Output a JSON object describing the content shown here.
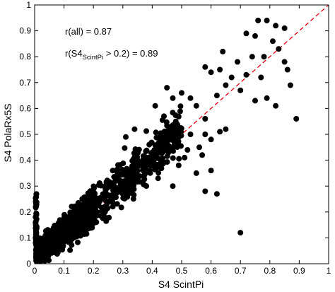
{
  "chart_data": {
    "type": "scatter",
    "xlabel": "S4 ScintPi",
    "ylabel": "S4 PolaRx5S",
    "xlim": [
      0,
      1
    ],
    "ylim": [
      0,
      1
    ],
    "xticks": [
      "0",
      "0.1",
      "0.2",
      "0.3",
      "0.4",
      "0.5",
      "0.6",
      "0.7",
      "0.8",
      "0.9",
      "1"
    ],
    "yticks": [
      "0",
      "0.1",
      "0.2",
      "0.3",
      "0.4",
      "0.5",
      "0.6",
      "0.7",
      "0.8",
      "0.9",
      "1"
    ],
    "grid": false,
    "annotations": {
      "r_all": "r(all) = 0.87",
      "r_sub_prefix": "r(S4",
      "r_sub_subscript": "ScintPi",
      "r_sub_suffix": " > 0.2) = 0.89"
    },
    "reference_line": {
      "label": "",
      "x": [
        0,
        1
      ],
      "y": [
        0,
        1
      ],
      "style": "dashed",
      "color": "#e0000f"
    },
    "marker_color": "#000000",
    "series": [
      {
        "points": [
          [
            0.76,
            0.94
          ],
          [
            0.79,
            0.94
          ],
          [
            0.82,
            0.92
          ],
          [
            0.85,
            0.91
          ],
          [
            0.75,
            0.88
          ],
          [
            0.81,
            0.86
          ],
          [
            0.83,
            0.83
          ],
          [
            0.72,
            0.89
          ],
          [
            0.78,
            0.8
          ],
          [
            0.64,
            0.82
          ],
          [
            0.74,
            0.8
          ],
          [
            0.85,
            0.78
          ],
          [
            0.69,
            0.78
          ],
          [
            0.72,
            0.73
          ],
          [
            0.77,
            0.72
          ],
          [
            0.67,
            0.72
          ],
          [
            0.63,
            0.75
          ],
          [
            0.65,
            0.69
          ],
          [
            0.6,
            0.74
          ],
          [
            0.58,
            0.76
          ],
          [
            0.7,
            0.67
          ],
          [
            0.79,
            0.64
          ],
          [
            0.82,
            0.61
          ],
          [
            0.87,
            0.69
          ],
          [
            0.89,
            0.56
          ],
          [
            0.75,
            0.63
          ],
          [
            0.86,
            0.75
          ],
          [
            0.62,
            0.65
          ],
          [
            0.58,
            0.56
          ],
          [
            0.55,
            0.61
          ],
          [
            0.53,
            0.64
          ],
          [
            0.5,
            0.66
          ],
          [
            0.47,
            0.64
          ],
          [
            0.45,
            0.68
          ],
          [
            0.41,
            0.61
          ],
          [
            0.58,
            0.5
          ],
          [
            0.6,
            0.48
          ],
          [
            0.52,
            0.44
          ],
          [
            0.55,
            0.35
          ],
          [
            0.49,
            0.38
          ],
          [
            0.63,
            0.51
          ],
          [
            0.65,
            0.52
          ],
          [
            0.47,
            0.3
          ],
          [
            0.42,
            0.33
          ],
          [
            0.38,
            0.3
          ],
          [
            0.62,
            0.27
          ],
          [
            0.58,
            0.28
          ],
          [
            0.7,
            0.12
          ],
          [
            0.4,
            0.43
          ],
          [
            0.44,
            0.45
          ],
          [
            0.36,
            0.38
          ],
          [
            0.34,
            0.52
          ],
          [
            0.31,
            0.49
          ],
          [
            0.56,
            0.45
          ],
          [
            0.53,
            0.5
          ],
          [
            0.57,
            0.42
          ],
          [
            0.46,
            0.52
          ],
          [
            0.39,
            0.46
          ],
          [
            0.43,
            0.49
          ],
          [
            0.6,
            0.36
          ],
          [
            0.51,
            0.41
          ],
          [
            0.48,
            0.55
          ],
          [
            0.44,
            0.57
          ]
        ]
      }
    ]
  }
}
